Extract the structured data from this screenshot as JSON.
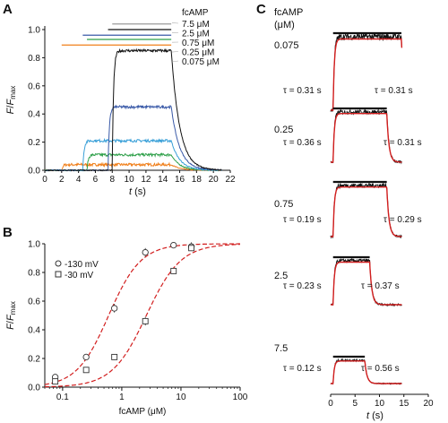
{
  "panels": {
    "a": "A",
    "b": "B",
    "c": "C"
  },
  "colors": {
    "black": "#111111",
    "blue_dark": "#3a5aa8",
    "blue_light": "#3aa0d8",
    "green": "#2fa04a",
    "orange": "#f07f1a",
    "grey": "#9a9a9a",
    "red": "#d21e1e"
  },
  "chart_data": [
    {
      "id": "A",
      "type": "line",
      "xlabel": "t (s)",
      "ylabel": "F/Fmax",
      "xlim": [
        0,
        22
      ],
      "ylim": [
        0,
        1.0
      ],
      "xticks": [
        0,
        2,
        4,
        6,
        8,
        10,
        12,
        14,
        16,
        18,
        20,
        22
      ],
      "yticks": [
        0.0,
        0.2,
        0.4,
        0.6,
        0.8,
        1.0
      ],
      "legend_title": "fcAMP",
      "series": [
        {
          "name": "7.5 μM",
          "color": "#111111",
          "on": 8,
          "off": 15,
          "amp": 0.85
        },
        {
          "name": "2.5 μM",
          "color": "#3a5aa8",
          "on": 7.5,
          "off": 15,
          "amp": 0.45
        },
        {
          "name": "0.75 μM",
          "color": "#3aa0d8",
          "on": 4.5,
          "off": 15,
          "amp": 0.21
        },
        {
          "name": "0.25 μM",
          "color": "#2fa04a",
          "on": 5,
          "off": 15,
          "amp": 0.11
        },
        {
          "name": "0.075 μM",
          "color": "#f07f1a",
          "on": 2,
          "off": 15,
          "amp": 0.04
        }
      ],
      "bars": [
        {
          "color": "#9a9a9a",
          "start": 8,
          "end": 15,
          "y": 1.04
        },
        {
          "color": "#111111",
          "start": 7.5,
          "end": 15,
          "y": 1.0
        },
        {
          "color": "#3a5aa8",
          "start": 4.5,
          "end": 15,
          "y": 0.96
        },
        {
          "color": "#2fa04a",
          "start": 5,
          "end": 15,
          "y": 0.93
        },
        {
          "color": "#f07f1a",
          "start": 2,
          "end": 15,
          "y": 0.89
        }
      ]
    },
    {
      "id": "B",
      "type": "scatter",
      "xlabel": "fcAMP (μM)",
      "ylabel": "F/Fmax",
      "xscale": "log",
      "xlim": [
        0.05,
        100
      ],
      "ylim": [
        0,
        1.0
      ],
      "xticks": [
        0.1,
        1,
        10,
        100
      ],
      "xtick_labels": [
        "0.1",
        "1",
        "10",
        "100"
      ],
      "yticks": [
        0.0,
        0.2,
        0.4,
        0.6,
        0.8,
        1.0
      ],
      "legend": [
        "-130 mV",
        "-30 mV"
      ],
      "series": [
        {
          "name": "-130 mV",
          "marker": "circle",
          "x": [
            0.075,
            0.25,
            0.75,
            2.5,
            7.5,
            15
          ],
          "y": [
            0.07,
            0.21,
            0.55,
            0.94,
            0.99,
            0.98
          ],
          "err": [
            0.02,
            0.02,
            0.03,
            0.03,
            0.02,
            0.03
          ],
          "fit_ec50": 0.6,
          "fit_hill": 1.6
        },
        {
          "name": "-30 mV",
          "marker": "square",
          "x": [
            0.075,
            0.25,
            0.75,
            2.5,
            7.5,
            15
          ],
          "y": [
            0.04,
            0.12,
            0.21,
            0.46,
            0.81,
            0.97
          ],
          "err": [
            0.02,
            0.02,
            0.02,
            0.03,
            0.02,
            0.02
          ],
          "fit_ec50": 2.6,
          "fit_hill": 1.5
        }
      ]
    },
    {
      "id": "C",
      "type": "line",
      "header": "fcAMP\n(μM)",
      "header_line1": "fcAMP",
      "header_line2": "(μM)",
      "xlabel": "t (s)",
      "xlim": [
        0,
        20
      ],
      "xticks": [
        0,
        5,
        10,
        15,
        20
      ],
      "traces": [
        {
          "conc": "0.075",
          "on": 0.5,
          "off": 14.5,
          "tau_on": "τ = 0.31 s",
          "tau_off": "τ = 0.31 s"
        },
        {
          "conc": "0.25",
          "on": 0.5,
          "off": 11.5,
          "tau_on": "τ = 0.36 s",
          "tau_off": "τ = 0.31 s"
        },
        {
          "conc": "0.75",
          "on": 0.5,
          "off": 11.5,
          "tau_on": "τ = 0.19 s",
          "tau_off": "τ = 0.29 s"
        },
        {
          "conc": "2.5",
          "on": 0.5,
          "off": 8.0,
          "tau_on": "τ = 0.23 s",
          "tau_off": "τ = 0.37 s"
        },
        {
          "conc": "7.5",
          "on": 0.5,
          "off": 7.0,
          "tau_on": "τ = 0.12 s",
          "tau_off": "τ = 0.56 s"
        }
      ]
    }
  ]
}
